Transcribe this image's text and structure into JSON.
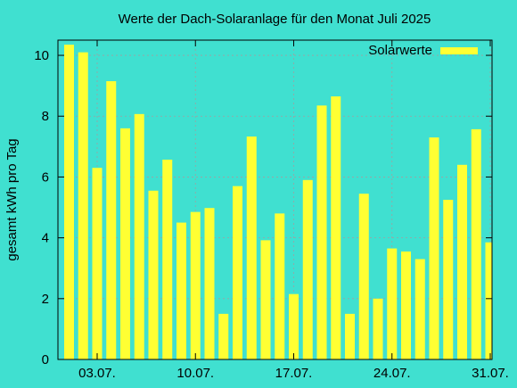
{
  "chart_data": {
    "type": "bar",
    "title": "Werte der Dach-Solaranlage für den Monat Juli 2025",
    "xlabel": "",
    "ylabel": "gesamt kWh pro Tag",
    "ylim": [
      0,
      10.5
    ],
    "yticks": [
      0,
      2,
      4,
      6,
      8,
      10
    ],
    "grid": true,
    "legend_position": "top-right",
    "bar_color": "#ffff33",
    "background_color": "#40e0d0",
    "grid_color": "#a0a0a0",
    "xtick_labels": [
      {
        "day": 3,
        "label": "03.07."
      },
      {
        "day": 10,
        "label": "10.07."
      },
      {
        "day": 17,
        "label": "17.07."
      },
      {
        "day": 24,
        "label": "24.07."
      },
      {
        "day": 31,
        "label": "31.07."
      }
    ],
    "series": [
      {
        "name": "Solarwerte",
        "days": [
          1,
          2,
          3,
          4,
          5,
          6,
          7,
          8,
          9,
          10,
          11,
          12,
          13,
          14,
          15,
          16,
          17,
          18,
          19,
          20,
          21,
          22,
          23,
          24,
          25,
          26,
          27,
          28,
          29,
          30,
          31
        ],
        "values": [
          10.35,
          10.1,
          6.3,
          9.15,
          7.6,
          8.07,
          5.55,
          6.57,
          4.5,
          4.85,
          4.98,
          1.5,
          5.7,
          7.33,
          3.92,
          4.8,
          2.15,
          5.9,
          8.35,
          8.65,
          1.5,
          5.45,
          2.0,
          3.65,
          3.55,
          3.3,
          7.3,
          5.25,
          6.4,
          7.57,
          3.85
        ]
      }
    ]
  }
}
